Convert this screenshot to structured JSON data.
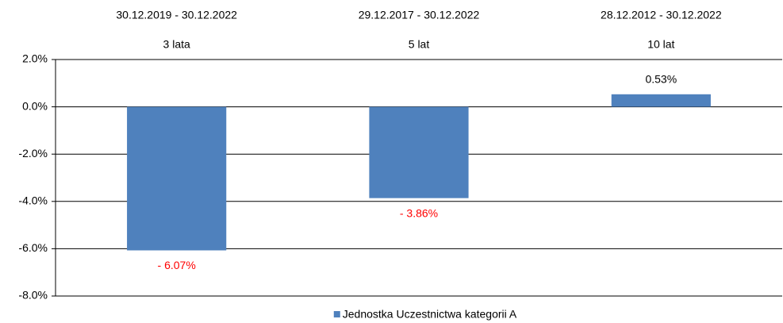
{
  "chart_data": {
    "type": "bar",
    "categories": [
      "3 lata",
      "5 lat",
      "10 lat"
    ],
    "category_ranges": [
      "30.12.2019 - 30.12.2022",
      "29.12.2017 - 30.12.2022",
      "28.12.2012 - 30.12.2022"
    ],
    "series": [
      {
        "name": "Jednostka Uczestnictwa kategorii A",
        "color": "#4f81bd",
        "values": [
          -6.07,
          -3.86,
          0.53
        ],
        "value_labels": [
          "- 6.07%",
          "- 3.86%",
          "0.53%"
        ]
      }
    ],
    "negative_label_color": "#ff0000",
    "ylim": [
      -8,
      2
    ],
    "yticks": [
      {
        "value": 2,
        "label": "2.0%"
      },
      {
        "value": 0,
        "label": "0.0%"
      },
      {
        "value": -2,
        "label": "-2.0%"
      },
      {
        "value": -4,
        "label": "-4.0%"
      },
      {
        "value": -6,
        "label": "-6.0%"
      },
      {
        "value": -8,
        "label": "-8.0%"
      }
    ],
    "grid": true,
    "legend": "bottom"
  }
}
